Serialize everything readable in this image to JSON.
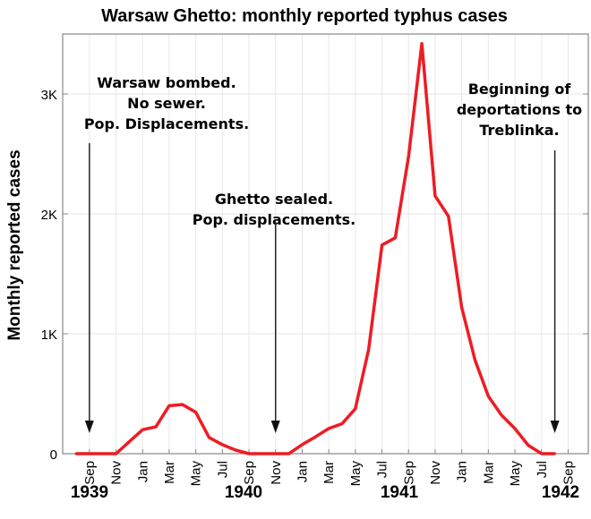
{
  "chart_data": {
    "type": "line",
    "title": "Warsaw Ghetto: monthly reported typhus cases",
    "ylabel": "Monthly reported cases",
    "xlabel": "",
    "ylim": [
      0,
      3500
    ],
    "y_ticks": [
      0,
      1000,
      2000,
      3000
    ],
    "y_tick_labels": [
      "0",
      "1K",
      "2K",
      "3K"
    ],
    "x_start": "1939-08",
    "x_tick_labels": [
      "Sep",
      "Nov",
      "Jan",
      "Mar",
      "May",
      "Jul",
      "Sep",
      "Nov",
      "Jan",
      "Mar",
      "May",
      "Jul",
      "Sep",
      "Nov",
      "Jan",
      "Mar",
      "May",
      "Jul",
      "Sep"
    ],
    "year_labels": [
      "1939",
      "1940",
      "1941",
      "1942"
    ],
    "grid": true,
    "line_color": "#ee1c24",
    "x": [
      "1939-08",
      "1939-09",
      "1939-10",
      "1939-11",
      "1939-12",
      "1940-01",
      "1940-02",
      "1940-03",
      "1940-04",
      "1940-05",
      "1940-06",
      "1940-07",
      "1940-08",
      "1940-09",
      "1940-10",
      "1940-11",
      "1940-12",
      "1941-01",
      "1941-02",
      "1941-03",
      "1941-04",
      "1941-05",
      "1941-06",
      "1941-07",
      "1941-08",
      "1941-09",
      "1941-10",
      "1941-11",
      "1941-12",
      "1942-01",
      "1942-02",
      "1942-03",
      "1942-04",
      "1942-05",
      "1942-06",
      "1942-07",
      "1942-08"
    ],
    "values": [
      0,
      0,
      0,
      0,
      100,
      200,
      225,
      400,
      410,
      345,
      135,
      75,
      30,
      0,
      0,
      0,
      0,
      75,
      140,
      210,
      250,
      375,
      870,
      1740,
      1800,
      2480,
      3420,
      2150,
      1980,
      1220,
      780,
      480,
      320,
      210,
      70,
      0,
      0
    ],
    "annotations": [
      {
        "lines": [
          "Warsaw bombed.",
          "No sewer.",
          "Pop. Displacements."
        ],
        "arrow_at": "1939-09"
      },
      {
        "lines": [
          "Ghetto sealed.",
          "Pop. displacements."
        ],
        "arrow_at": "1940-11"
      },
      {
        "lines": [
          "Beginning of",
          "deportations to",
          "Treblinka."
        ],
        "arrow_at": "1942-08"
      }
    ]
  }
}
